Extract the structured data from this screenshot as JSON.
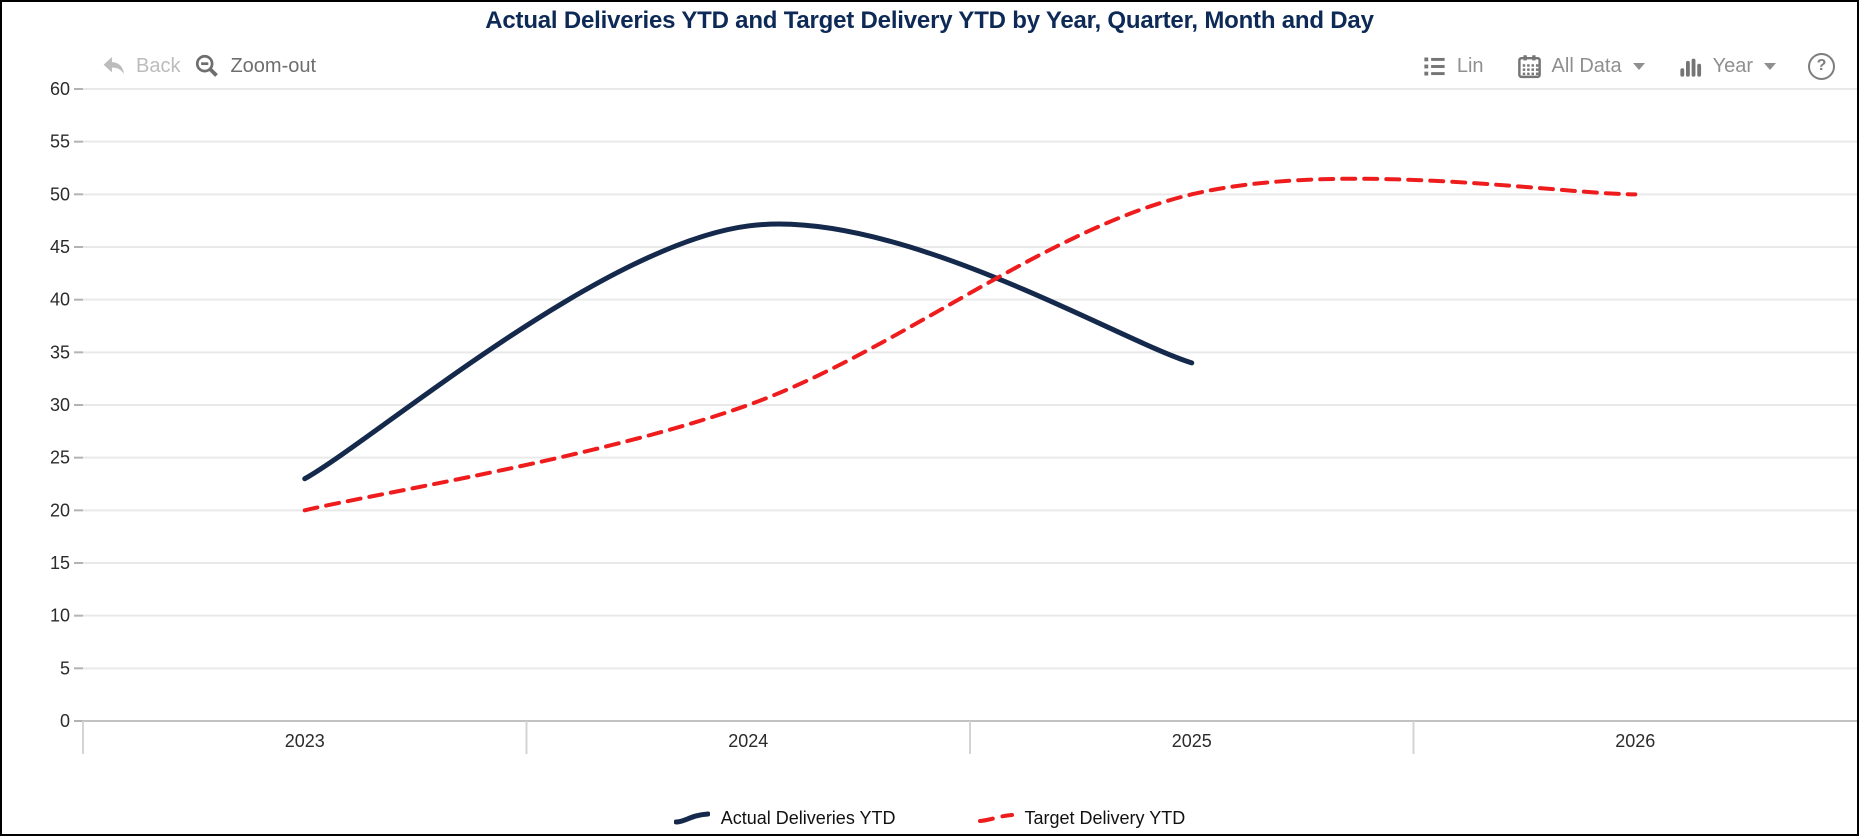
{
  "title": "Actual Deliveries YTD and Target Delivery YTD by Year, Quarter, Month and Day",
  "toolbar": {
    "back_label": "Back",
    "back_enabled": false,
    "zoom_out_label": "Zoom-out",
    "lin_label": "Lin",
    "all_data_label": "All Data",
    "year_label": "Year",
    "help_label": "?"
  },
  "chart_data": {
    "type": "line",
    "title": "Actual Deliveries YTD and Target Delivery YTD by Year, Quarter, Month and Day",
    "categories": [
      "2023",
      "2024",
      "2025",
      "2026"
    ],
    "series": [
      {
        "name": "Actual Deliveries YTD",
        "color": "#14294b",
        "style": "solid",
        "stroke_width": 5,
        "values": [
          23,
          47,
          34,
          null
        ]
      },
      {
        "name": "Target Delivery YTD",
        "color": "#ee1c1c",
        "style": "dashed",
        "stroke_width": 4,
        "values": [
          20,
          30,
          50,
          50
        ]
      }
    ],
    "ylim": [
      0,
      60
    ],
    "ytick_step": 5,
    "yticks": [
      0,
      5,
      10,
      15,
      20,
      25,
      30,
      35,
      40,
      45,
      50,
      55,
      60
    ],
    "grid": true,
    "legend_position": "bottom",
    "curve": "smooth-spline",
    "grid_color": "#e9e9e9",
    "axis_color": "#c2c2c2"
  }
}
